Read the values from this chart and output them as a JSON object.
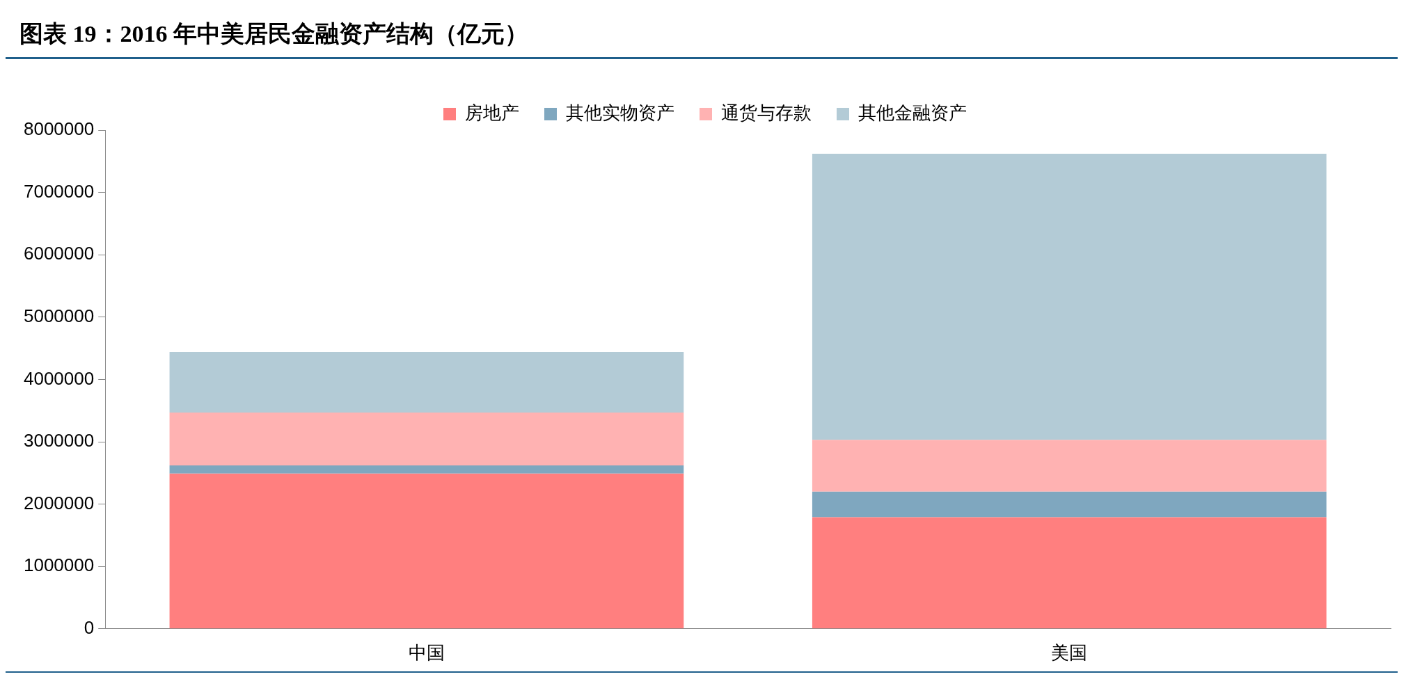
{
  "chart_data": {
    "type": "bar",
    "title": "图表 19：2016 年中美居民金融资产结构（亿元）",
    "categories": [
      "中国",
      "美国"
    ],
    "stacked": true,
    "legend": "top",
    "grid": false,
    "ylim": [
      0,
      8000000
    ],
    "yticks": [
      0,
      1000000,
      2000000,
      3000000,
      4000000,
      5000000,
      6000000,
      7000000,
      8000000
    ],
    "series": [
      {
        "name": "房地产",
        "color": "#ff7f7f",
        "values": [
          2490000,
          1790000
        ]
      },
      {
        "name": "其他实物资产",
        "color": "#7fa7bf",
        "values": [
          130000,
          410000
        ]
      },
      {
        "name": "通货与存款",
        "color": "#ffb2b2",
        "values": [
          850000,
          830000
        ]
      },
      {
        "name": "其他金融资产",
        "color": "#b3cbd6",
        "values": [
          970000,
          4590000
        ]
      }
    ]
  }
}
